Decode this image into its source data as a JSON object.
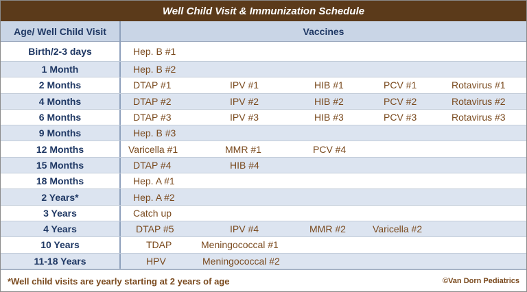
{
  "title": "Well Child Visit & Immunization Schedule",
  "header": {
    "age": "Age/ Well Child Visit",
    "vaccines": "Vaccines"
  },
  "rows": [
    {
      "age": "Birth/2-3 days",
      "vaccines": [
        "Hep. B #1"
      ]
    },
    {
      "age": "1 Month",
      "vaccines": [
        "Hep. B #2"
      ]
    },
    {
      "age": "2 Months",
      "vaccines": [
        "DTAP #1",
        "IPV #1",
        "HIB #1",
        "PCV #1",
        "Rotavirus #1"
      ]
    },
    {
      "age": "4 Months",
      "vaccines": [
        "DTAP #2",
        "IPV #2",
        "HIB #2",
        "PCV #2",
        "Rotavirus #2"
      ]
    },
    {
      "age": "6 Months",
      "vaccines": [
        "DTAP #3",
        "IPV #3",
        "HIB #3",
        "PCV #3",
        "Rotavirus #3"
      ]
    },
    {
      "age": "9 Months",
      "vaccines": [
        "Hep. B #3"
      ]
    },
    {
      "age": "12 Months",
      "vaccines": [
        "Varicella #1",
        "MMR #1",
        "PCV #4"
      ]
    },
    {
      "age": "15 Months",
      "vaccines": [
        "DTAP #4",
        "HIB #4"
      ]
    },
    {
      "age": "18 Months",
      "vaccines": [
        "Hep. A #1"
      ]
    },
    {
      "age": "2 Years*",
      "vaccines": [
        "Hep. A #2"
      ]
    },
    {
      "age": "3 Years",
      "vaccines": [
        "Catch up"
      ]
    },
    {
      "age": "4 Years",
      "vaccines": [
        "DTAP #5",
        "IPV #4",
        "MMR #2",
        "Varicella #2"
      ]
    },
    {
      "age": "10 Years",
      "vaccines": [
        "TDAP",
        "Meningococcal  #1"
      ]
    },
    {
      "age": "11-18 Years",
      "vaccines": [
        "HPV",
        "Meningococcal #2"
      ]
    }
  ],
  "footer": {
    "note": "*Well child visits are yearly starting at 2 years of age",
    "copyright": "©Van Dorn Pediatrics"
  },
  "colors": {
    "title_bg": "#5b3a1a",
    "header_bg": "#c9d5e6",
    "alt_row_bg": "#dce4f0",
    "age_text": "#1f3864",
    "vaccine_text": "#7a4a1e"
  }
}
